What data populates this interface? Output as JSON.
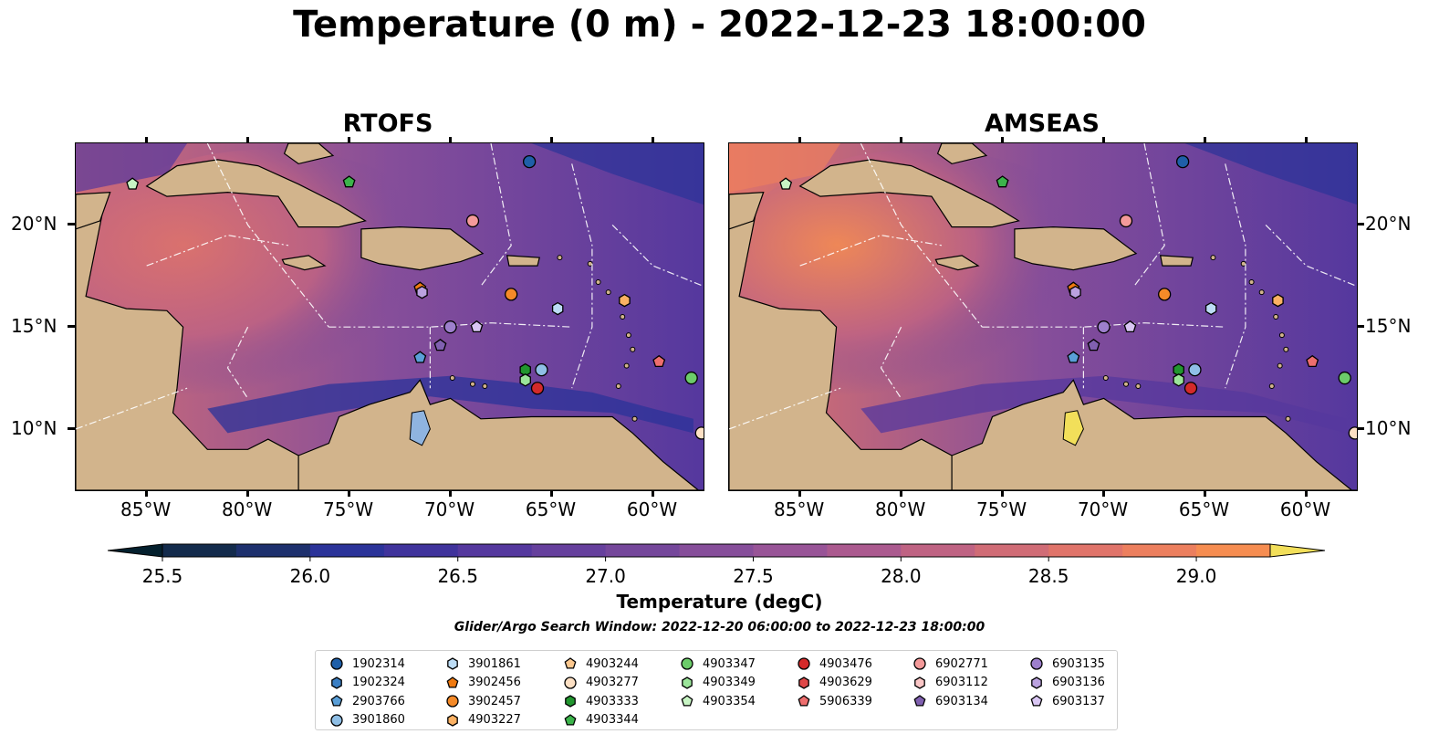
{
  "title": "Temperature (0 m) - 2022-12-23 18:00:00",
  "panels": [
    {
      "title": "RTOFS"
    },
    {
      "title": "AMSEAS"
    }
  ],
  "axes": {
    "lon_ticks": [
      "85°W",
      "80°W",
      "75°W",
      "70°W",
      "65°W",
      "60°W"
    ],
    "lat_ticks": [
      "20°N",
      "15°N",
      "10°N"
    ],
    "lon_range": [
      -88.5,
      -57.5
    ],
    "lat_range": [
      7.0,
      24.0
    ]
  },
  "colorbar": {
    "label": "Temperature (degC)",
    "min": 25.25,
    "max": 29.5,
    "step": 0.25,
    "tick_labels": [
      "25.5",
      "26.0",
      "26.5",
      "27.0",
      "27.5",
      "28.0",
      "28.5",
      "29.0"
    ],
    "extend": "both",
    "colormap": "thermal",
    "colors": [
      "#04202e",
      "#132b4c",
      "#1d306d",
      "#2b3399",
      "#40339c",
      "#55389e",
      "#66409d",
      "#75479b",
      "#864e9a",
      "#985497",
      "#ab5a8f",
      "#bf6383",
      "#d06c76",
      "#e0746a",
      "#ec7f5e",
      "#f68d51",
      "#fa9c48",
      "#fbb04b",
      "#f8c752",
      "#f2df5a"
    ]
  },
  "window_note": "Glider/Argo Search Window: 2022-12-20 06:00:00 to 2022-12-23 18:00:00",
  "land_color": "#d2b48c",
  "legend": [
    {
      "id": "1902314",
      "marker": "circle",
      "color": "#1f5fa8"
    },
    {
      "id": "1902324",
      "marker": "hexagon",
      "color": "#3b7fc4"
    },
    {
      "id": "2903766",
      "marker": "pentagon",
      "color": "#5a9fd8"
    },
    {
      "id": "3901860",
      "marker": "circle",
      "color": "#8fbfe6"
    },
    {
      "id": "3901861",
      "marker": "hexagon",
      "color": "#bcdcf5"
    },
    {
      "id": "3902456",
      "marker": "pentagon",
      "color": "#f07a10"
    },
    {
      "id": "3902457",
      "marker": "circle",
      "color": "#f58a28"
    },
    {
      "id": "4903227",
      "marker": "hexagon",
      "color": "#fbb163"
    },
    {
      "id": "4903244",
      "marker": "pentagon",
      "color": "#fcc88f"
    },
    {
      "id": "4903277",
      "marker": "circle",
      "color": "#fde0c4"
    },
    {
      "id": "4903333",
      "marker": "hexagon",
      "color": "#22962f"
    },
    {
      "id": "4903344",
      "marker": "pentagon",
      "color": "#3cb44b"
    },
    {
      "id": "4903347",
      "marker": "circle",
      "color": "#6ccc6a"
    },
    {
      "id": "4903349",
      "marker": "hexagon",
      "color": "#9be59a"
    },
    {
      "id": "4903354",
      "marker": "pentagon",
      "color": "#c8f5c4"
    },
    {
      "id": "4903476",
      "marker": "circle",
      "color": "#d42a2a"
    },
    {
      "id": "4903629",
      "marker": "hexagon",
      "color": "#e04848"
    },
    {
      "id": "5906339",
      "marker": "pentagon",
      "color": "#ee6e6e"
    },
    {
      "id": "6902771",
      "marker": "circle",
      "color": "#f49a9a"
    },
    {
      "id": "6903112",
      "marker": "hexagon",
      "color": "#fac6c6"
    },
    {
      "id": "6903134",
      "marker": "pentagon",
      "color": "#8060b0"
    },
    {
      "id": "6903135",
      "marker": "circle",
      "color": "#9d7fcc"
    },
    {
      "id": "6903136",
      "marker": "hexagon",
      "color": "#bba2e0"
    },
    {
      "id": "6903137",
      "marker": "pentagon",
      "color": "#d9c6f3"
    }
  ],
  "observations": [
    {
      "id": "4903354",
      "lon": -85.7,
      "lat": 22.0
    },
    {
      "id": "4903344",
      "lon": -75.0,
      "lat": 22.1
    },
    {
      "id": "1902314",
      "lon": -66.1,
      "lat": 23.1
    },
    {
      "id": "6902771",
      "lon": -68.9,
      "lat": 20.2
    },
    {
      "id": "3902456",
      "lon": -71.5,
      "lat": 16.9
    },
    {
      "id": "6903136",
      "lon": -71.4,
      "lat": 16.7
    },
    {
      "id": "3902457",
      "lon": -67.0,
      "lat": 16.6
    },
    {
      "id": "3901861",
      "lon": -64.7,
      "lat": 15.9
    },
    {
      "id": "6903135",
      "lon": -70.0,
      "lat": 15.0
    },
    {
      "id": "6903137",
      "lon": -68.7,
      "lat": 15.0
    },
    {
      "id": "6903134",
      "lon": -70.5,
      "lat": 14.1
    },
    {
      "id": "2903766",
      "lon": -71.5,
      "lat": 13.5
    },
    {
      "id": "4903333",
      "lon": -66.3,
      "lat": 12.9
    },
    {
      "id": "3901860",
      "lon": -65.5,
      "lat": 12.9
    },
    {
      "id": "4903349",
      "lon": -66.3,
      "lat": 12.4
    },
    {
      "id": "4903476",
      "lon": -65.7,
      "lat": 12.0
    },
    {
      "id": "5906339",
      "lon": -59.7,
      "lat": 13.3
    },
    {
      "id": "4903347",
      "lon": -58.1,
      "lat": 12.5
    },
    {
      "id": "4903227",
      "lon": -61.4,
      "lat": 16.3
    },
    {
      "id": "4903277",
      "lon": -57.6,
      "lat": 9.8
    }
  ]
}
